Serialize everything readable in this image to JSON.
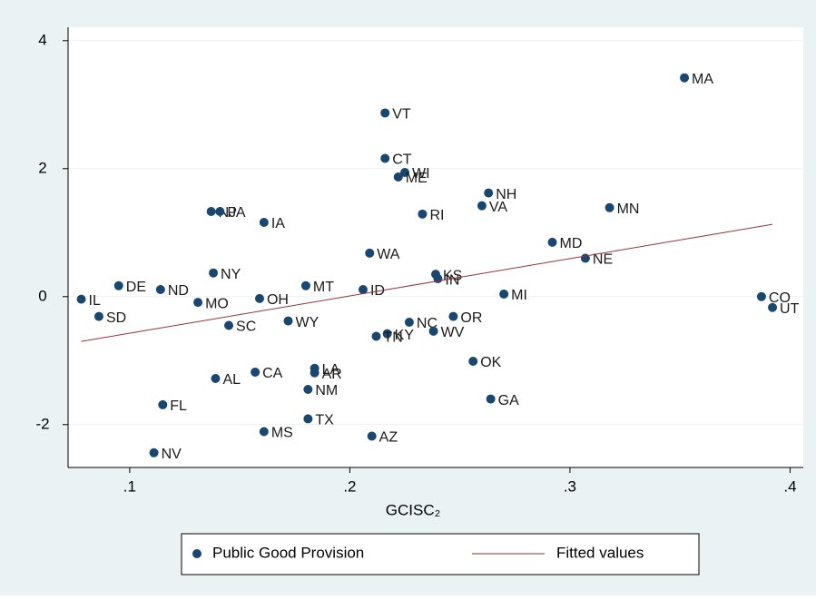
{
  "chart_data": {
    "type": "scatter",
    "xlabel": "GCISC₂",
    "xlim": [
      0.072,
      0.406
    ],
    "ylim": [
      -2.67,
      4.21
    ],
    "xticks": [
      {
        "value": 0.1,
        "label": ".1"
      },
      {
        "value": 0.2,
        "label": ".2"
      },
      {
        "value": 0.3,
        "label": ".3"
      },
      {
        "value": 0.4,
        "label": ".4"
      }
    ],
    "yticks": [
      -2,
      0,
      2,
      4
    ],
    "grid": true,
    "series": [
      {
        "name": "Public Good Provision",
        "color": "#1a476f",
        "kind": "points",
        "labels": [
          "MA",
          "VT",
          "CT",
          "WI",
          "ME",
          "NH",
          "VA",
          "MN",
          "RI",
          "NJ",
          "PA",
          "IA",
          "MD",
          "WA",
          "NE",
          "NY",
          "KS",
          "IN",
          "DE",
          "MT",
          "ND",
          "ID",
          "MI",
          "CO",
          "IL",
          "OH",
          "MO",
          "UT",
          "OR",
          "SD",
          "NC",
          "WY",
          "SC",
          "WV",
          "KY",
          "TN",
          "OK",
          "LA",
          "AR",
          "CA",
          "AL",
          "NM",
          "GA",
          "FL",
          "TX",
          "MS",
          "AZ",
          "NV"
        ],
        "x": [
          0.352,
          0.216,
          0.216,
          0.225,
          0.222,
          0.263,
          0.26,
          0.318,
          0.233,
          0.137,
          0.141,
          0.161,
          0.292,
          0.209,
          0.307,
          0.138,
          0.239,
          0.24,
          0.095,
          0.18,
          0.114,
          0.206,
          0.27,
          0.387,
          0.078,
          0.159,
          0.131,
          0.392,
          0.247,
          0.086,
          0.227,
          0.172,
          0.145,
          0.238,
          0.217,
          0.212,
          0.256,
          0.184,
          0.184,
          0.157,
          0.139,
          0.181,
          0.264,
          0.115,
          0.181,
          0.161,
          0.21,
          0.111
        ],
        "values": [
          3.42,
          2.87,
          2.16,
          1.94,
          1.87,
          1.62,
          1.42,
          1.39,
          1.29,
          1.33,
          1.33,
          1.16,
          0.85,
          0.68,
          0.6,
          0.37,
          0.35,
          0.28,
          0.17,
          0.17,
          0.11,
          0.11,
          0.04,
          0.0,
          -0.04,
          -0.03,
          -0.09,
          -0.17,
          -0.31,
          -0.31,
          -0.4,
          -0.38,
          -0.45,
          -0.54,
          -0.58,
          -0.62,
          -1.01,
          -1.12,
          -1.19,
          -1.18,
          -1.28,
          -1.45,
          -1.6,
          -1.69,
          -1.91,
          -2.11,
          -2.18,
          -2.44
        ]
      },
      {
        "name": "Fitted values",
        "color": "#90353b",
        "kind": "line",
        "x": [
          0.078,
          0.392
        ],
        "values": [
          -0.7,
          1.13
        ]
      }
    ]
  }
}
